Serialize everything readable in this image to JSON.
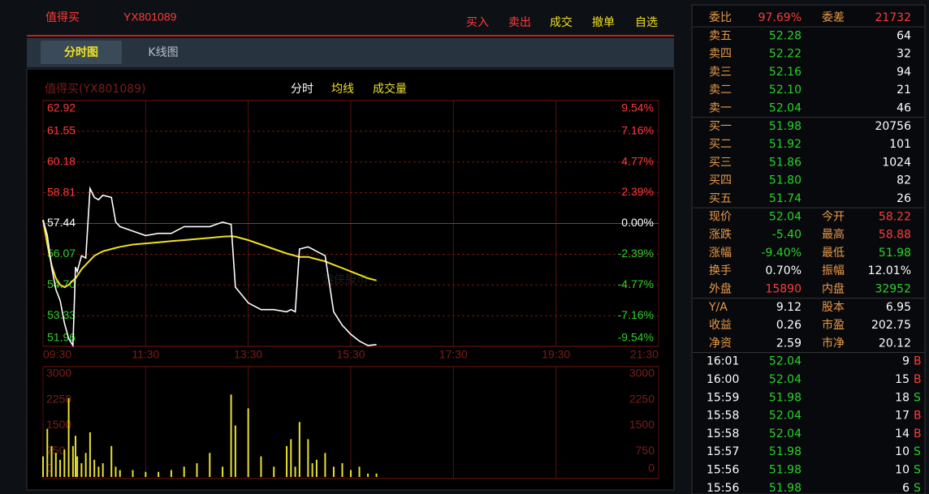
{
  "header": {
    "name": "值得买",
    "code": "YX801089",
    "actions": [
      "买入",
      "卖出",
      "成交",
      "撤单",
      "自选"
    ]
  },
  "tabs": [
    "分时图",
    "K线图"
  ],
  "watermark": "游侠股市",
  "chart_data": {
    "type": "line",
    "title": "值得买(YX801089)",
    "x": [
      "09:30",
      "09:35",
      "09:40",
      "09:45",
      "09:50",
      "09:55",
      "10:00",
      "10:05",
      "10:08",
      "10:10",
      "10:15",
      "10:20",
      "10:25",
      "10:30",
      "10:35",
      "10:40",
      "10:50",
      "10:55",
      "11:00",
      "11:15",
      "11:30",
      "11:45",
      "12:00",
      "12:15",
      "12:30",
      "12:45",
      "13:00",
      "13:10",
      "13:15",
      "13:30",
      "13:45",
      "14:00",
      "14:15",
      "14:20",
      "14:25",
      "14:30",
      "14:40",
      "14:45",
      "14:50",
      "15:00",
      "15:10",
      "15:20",
      "15:30",
      "15:40",
      "15:50",
      "16:00"
    ],
    "series": [
      {
        "name": "分时",
        "color": "#ffffff",
        "values": [
          57.6,
          56.9,
          55.5,
          54.5,
          54.0,
          53.0,
          52.3,
          52.0,
          55.5,
          55.3,
          56.0,
          55.9,
          59.0,
          58.6,
          58.5,
          58.7,
          58.6,
          57.5,
          57.3,
          57.1,
          56.9,
          57.0,
          57.0,
          57.3,
          57.3,
          57.3,
          57.5,
          57.4,
          54.6,
          53.9,
          53.6,
          53.6,
          53.5,
          53.6,
          53.5,
          56.3,
          56.4,
          56.3,
          56.2,
          56.0,
          53.5,
          52.9,
          52.5,
          52.2,
          52.0,
          52.04
        ]
      },
      {
        "name": "均线",
        "color": "#f0e020",
        "values": [
          57.6,
          56.5,
          55.6,
          55.0,
          54.7,
          54.6,
          54.7,
          54.9,
          55.0,
          55.1,
          55.4,
          55.6,
          55.8,
          56.0,
          56.1,
          56.2,
          56.3,
          56.35,
          56.4,
          56.5,
          56.55,
          56.6,
          56.65,
          56.7,
          56.75,
          56.8,
          56.85,
          56.87,
          56.85,
          56.7,
          56.5,
          56.3,
          56.1,
          56.05,
          56.0,
          55.95,
          55.95,
          55.9,
          55.85,
          55.75,
          55.6,
          55.45,
          55.3,
          55.15,
          55.0,
          54.9
        ]
      }
    ],
    "volume": {
      "name": "成交量",
      "color": "#e8e030",
      "values": [
        600,
        1400,
        900,
        700,
        500,
        800,
        2300,
        900,
        1200,
        600,
        400,
        700,
        1300,
        500,
        300,
        400,
        900,
        300,
        200,
        200,
        150,
        150,
        200,
        300,
        400,
        700,
        300,
        2400,
        1500,
        2000,
        600,
        300,
        900,
        1100,
        300,
        1600,
        1100,
        400,
        500,
        700,
        300,
        400,
        200,
        300,
        100,
        100
      ],
      "ylim": [
        0,
        3000
      ],
      "yticks": [
        3000,
        2250,
        1500,
        750,
        0
      ]
    },
    "xlim": [
      "09:30",
      "21:30"
    ],
    "xticks": [
      "09:30",
      "11:30",
      "13:30",
      "15:30",
      "17:30",
      "19:30",
      "21:30"
    ],
    "ylim": [
      51.96,
      62.92
    ],
    "yticks": [
      62.92,
      61.55,
      60.18,
      58.81,
      57.44,
      56.07,
      {
        "value": 54.7,
        "label": "54.70"
      },
      53.33,
      51.96
    ],
    "y2lim": [
      -9.54,
      9.54
    ],
    "y2ticks": [
      {
        "value": 9.54,
        "label": "9.54%"
      },
      {
        "value": 7.16,
        "label": "7.16%"
      },
      {
        "value": 4.77,
        "label": "4.77%"
      },
      {
        "value": 2.39,
        "label": "2.39%"
      },
      {
        "value": 0,
        "label": "0.00%"
      },
      {
        "value": -2.39,
        "label": "-2.39%"
      },
      {
        "value": -4.77,
        "label": "-4.77%"
      },
      {
        "value": -7.16,
        "label": "-7.16%"
      },
      {
        "value": -9.54,
        "label": "-9.54%"
      }
    ],
    "grid": true
  },
  "quote": {
    "summary": [
      [
        "委比",
        "97.69%",
        "委差",
        "21732"
      ]
    ],
    "asks": [
      [
        "卖五",
        "52.28",
        "64"
      ],
      [
        "卖四",
        "52.22",
        "32"
      ],
      [
        "卖三",
        "52.16",
        "94"
      ],
      [
        "卖二",
        "52.10",
        "21"
      ],
      [
        "卖一",
        "52.04",
        "46"
      ]
    ],
    "bids": [
      [
        "买一",
        "51.98",
        "20756"
      ],
      [
        "买二",
        "51.92",
        "101"
      ],
      [
        "买三",
        "51.86",
        "1024"
      ],
      [
        "买四",
        "51.80",
        "82"
      ],
      [
        "买五",
        "51.74",
        "26"
      ]
    ],
    "stats": [
      [
        "现价",
        "52.04",
        "今开",
        "58.22"
      ],
      [
        "涨跌",
        "-5.40",
        "最高",
        "58.88"
      ],
      [
        "涨幅",
        "-9.40%",
        "最低",
        "51.98"
      ],
      [
        "换手",
        "0.70%",
        "振幅",
        "12.01%"
      ],
      [
        "外盘",
        "15890",
        "内盘",
        "32952"
      ]
    ],
    "fundamentals": [
      [
        "Y/A",
        "9.12",
        "股本",
        "6.95"
      ],
      [
        "收益",
        "0.26",
        "市盈",
        "202.75"
      ],
      [
        "净资",
        "2.59",
        "市净",
        "20.12"
      ]
    ],
    "trades": [
      [
        "16:01",
        "52.04",
        "9",
        "B"
      ],
      [
        "16:00",
        "52.04",
        "15",
        "B"
      ],
      [
        "15:59",
        "51.98",
        "18",
        "S"
      ],
      [
        "15:58",
        "52.04",
        "17",
        "B"
      ],
      [
        "15:58",
        "52.04",
        "14",
        "B"
      ],
      [
        "15:57",
        "51.98",
        "10",
        "S"
      ],
      [
        "15:56",
        "51.98",
        "10",
        "S"
      ],
      [
        "15:56",
        "51.98",
        "6",
        "S"
      ]
    ]
  }
}
